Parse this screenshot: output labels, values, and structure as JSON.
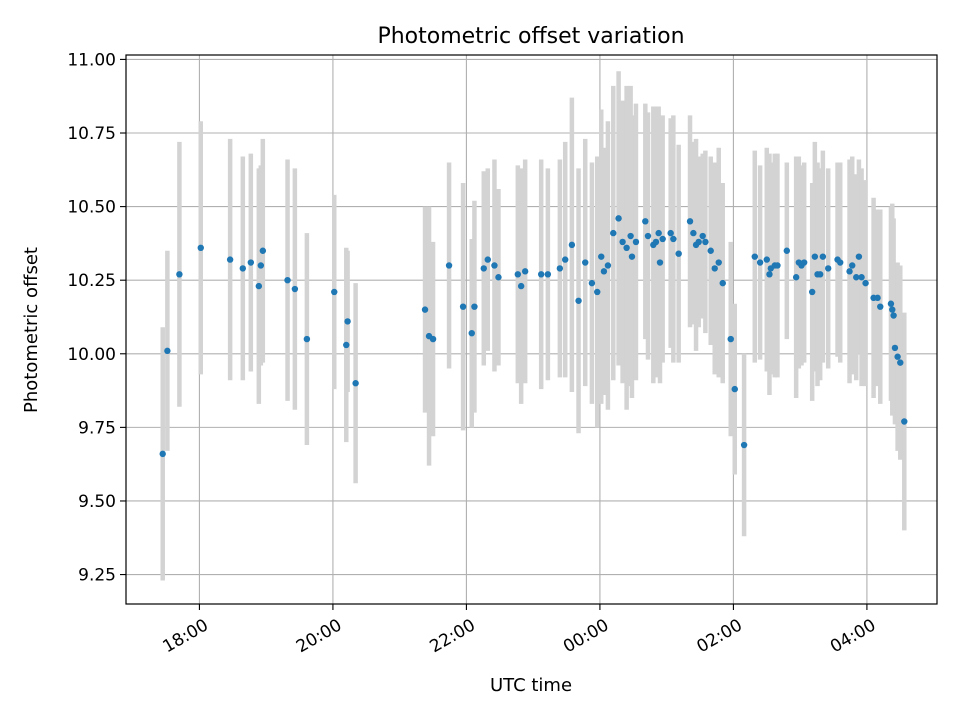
{
  "chart_data": {
    "type": "scatter",
    "title": "Photometric offset variation",
    "xlabel": "UTC time",
    "ylabel": "Photometric offset",
    "x_unit": "hours since 18:00 UTC (continuing past midnight)",
    "xlim": [
      -1.1,
      11.05
    ],
    "ylim": [
      9.15,
      11.015
    ],
    "grid": true,
    "legend": "none",
    "x_ticks": [
      {
        "value": 0,
        "label": "18:00"
      },
      {
        "value": 2,
        "label": "20:00"
      },
      {
        "value": 4,
        "label": "22:00"
      },
      {
        "value": 6,
        "label": "00:00"
      },
      {
        "value": 8,
        "label": "02:00"
      },
      {
        "value": 10,
        "label": "04:00"
      }
    ],
    "y_ticks": [
      {
        "value": 9.25,
        "label": "9.25"
      },
      {
        "value": 9.5,
        "label": "9.50"
      },
      {
        "value": 9.75,
        "label": "9.75"
      },
      {
        "value": 10.0,
        "label": "10.00"
      },
      {
        "value": 10.25,
        "label": "10.25"
      },
      {
        "value": 10.5,
        "label": "10.50"
      },
      {
        "value": 10.75,
        "label": "10.75"
      },
      {
        "value": 11.0,
        "label": "11.00"
      }
    ],
    "colors": {
      "points": "#1f77b4",
      "errorbars": "#d3d3d3",
      "grid": "#b0b0b0",
      "axes": "#000000"
    },
    "series": [
      {
        "name": "offset",
        "points": [
          [
            -0.55,
            9.66,
            0.43
          ],
          [
            -0.48,
            10.01,
            0.34
          ],
          [
            -0.3,
            10.27,
            0.45
          ],
          [
            0.02,
            10.36,
            0.43
          ],
          [
            0.46,
            10.32,
            0.41
          ],
          [
            0.65,
            10.29,
            0.38
          ],
          [
            0.77,
            10.31,
            0.37
          ],
          [
            0.89,
            10.23,
            0.4
          ],
          [
            0.92,
            10.3,
            0.34
          ],
          [
            0.95,
            10.35,
            0.38
          ],
          [
            1.32,
            10.25,
            0.41
          ],
          [
            1.43,
            10.22,
            0.41
          ],
          [
            1.61,
            10.05,
            0.36
          ],
          [
            2.02,
            10.21,
            0.33
          ],
          [
            2.2,
            10.03,
            0.33
          ],
          [
            2.22,
            10.11,
            0.24
          ],
          [
            2.34,
            9.9,
            0.34
          ],
          [
            3.38,
            10.15,
            0.35
          ],
          [
            3.44,
            10.06,
            0.44
          ],
          [
            3.5,
            10.05,
            0.33
          ],
          [
            3.74,
            10.3,
            0.35
          ],
          [
            3.95,
            10.16,
            0.42
          ],
          [
            4.08,
            10.07,
            0.32
          ],
          [
            4.12,
            10.16,
            0.36
          ],
          [
            4.26,
            10.29,
            0.33
          ],
          [
            4.32,
            10.32,
            0.31
          ],
          [
            4.42,
            10.3,
            0.36
          ],
          [
            4.48,
            10.26,
            0.3
          ],
          [
            4.77,
            10.27,
            0.37
          ],
          [
            4.82,
            10.23,
            0.4
          ],
          [
            4.88,
            10.28,
            0.38
          ],
          [
            5.12,
            10.27,
            0.39
          ],
          [
            5.22,
            10.27,
            0.36
          ],
          [
            5.4,
            10.29,
            0.37
          ],
          [
            5.48,
            10.32,
            0.4
          ],
          [
            5.58,
            10.37,
            0.5
          ],
          [
            5.68,
            10.18,
            0.45
          ],
          [
            5.78,
            10.31,
            0.42
          ],
          [
            5.88,
            10.24,
            0.41
          ],
          [
            5.96,
            10.21,
            0.46
          ],
          [
            6.02,
            10.33,
            0.5
          ],
          [
            6.06,
            10.28,
            0.42
          ],
          [
            6.12,
            10.3,
            0.49
          ],
          [
            6.2,
            10.41,
            0.5
          ],
          [
            6.28,
            10.46,
            0.5
          ],
          [
            6.34,
            10.38,
            0.48
          ],
          [
            6.4,
            10.36,
            0.55
          ],
          [
            6.46,
            10.4,
            0.51
          ],
          [
            6.48,
            10.33,
            0.48
          ],
          [
            6.54,
            10.38,
            0.47
          ],
          [
            6.68,
            10.45,
            0.4
          ],
          [
            6.72,
            10.4,
            0.42
          ],
          [
            6.8,
            10.37,
            0.47
          ],
          [
            6.84,
            10.38,
            0.46
          ],
          [
            6.88,
            10.41,
            0.43
          ],
          [
            6.9,
            10.31,
            0.41
          ],
          [
            6.94,
            10.39,
            0.42
          ],
          [
            7.06,
            10.41,
            0.39
          ],
          [
            7.1,
            10.39,
            0.42
          ],
          [
            7.18,
            10.34,
            0.37
          ],
          [
            7.35,
            10.45,
            0.36
          ],
          [
            7.4,
            10.41,
            0.31
          ],
          [
            7.44,
            10.37,
            0.36
          ],
          [
            7.48,
            10.38,
            0.29
          ],
          [
            7.54,
            10.4,
            0.28
          ],
          [
            7.58,
            10.38,
            0.31
          ],
          [
            7.66,
            10.35,
            0.32
          ],
          [
            7.72,
            10.29,
            0.36
          ],
          [
            7.78,
            10.31,
            0.39
          ],
          [
            7.84,
            10.24,
            0.34
          ],
          [
            7.96,
            10.05,
            0.33
          ],
          [
            8.02,
            9.88,
            0.29
          ],
          [
            8.16,
            9.69,
            0.31
          ],
          [
            8.32,
            10.33,
            0.36
          ],
          [
            8.4,
            10.31,
            0.33
          ],
          [
            8.5,
            10.32,
            0.38
          ],
          [
            8.54,
            10.27,
            0.41
          ],
          [
            8.56,
            10.29,
            0.36
          ],
          [
            8.62,
            10.3,
            0.38
          ],
          [
            8.66,
            10.3,
            0.38
          ],
          [
            8.8,
            10.35,
            0.3
          ],
          [
            8.94,
            10.26,
            0.41
          ],
          [
            8.98,
            10.31,
            0.36
          ],
          [
            9.02,
            10.3,
            0.34
          ],
          [
            9.06,
            10.31,
            0.34
          ],
          [
            9.18,
            10.21,
            0.37
          ],
          [
            9.22,
            10.33,
            0.39
          ],
          [
            9.26,
            10.27,
            0.38
          ],
          [
            9.3,
            10.27,
            0.36
          ],
          [
            9.34,
            10.33,
            0.36
          ],
          [
            9.42,
            10.29,
            0.34
          ],
          [
            9.56,
            10.32,
            0.33
          ],
          [
            9.6,
            10.31,
            0.34
          ],
          [
            9.74,
            10.28,
            0.38
          ],
          [
            9.78,
            10.3,
            0.37
          ],
          [
            9.84,
            10.26,
            0.35
          ],
          [
            9.88,
            10.33,
            0.33
          ],
          [
            9.92,
            10.26,
            0.37
          ],
          [
            9.98,
            10.24,
            0.35
          ],
          [
            10.1,
            10.19,
            0.34
          ],
          [
            10.16,
            10.19,
            0.3
          ],
          [
            10.2,
            10.16,
            0.33
          ],
          [
            10.36,
            10.17,
            0.33
          ],
          [
            10.38,
            10.15,
            0.36
          ],
          [
            10.4,
            10.13,
            0.33
          ],
          [
            10.42,
            10.02,
            0.26
          ],
          [
            10.46,
            9.99,
            0.32
          ],
          [
            10.5,
            9.97,
            0.33
          ],
          [
            10.56,
            9.77,
            0.37
          ]
        ]
      }
    ]
  }
}
